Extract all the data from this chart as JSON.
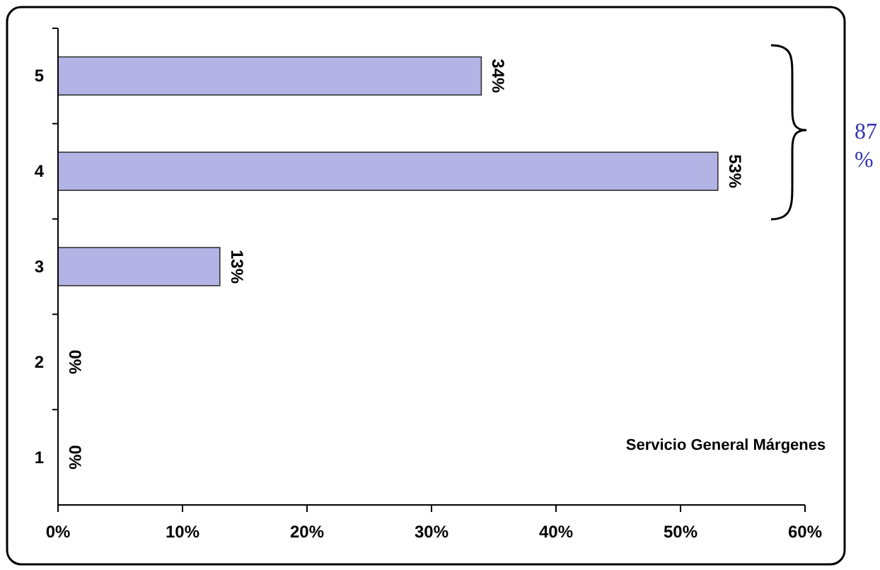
{
  "chart_data": {
    "type": "bar",
    "orientation": "horizontal",
    "categories": [
      "5",
      "4",
      "3",
      "2",
      "1"
    ],
    "values": [
      34,
      53,
      13,
      0,
      0
    ],
    "value_labels": [
      "34%",
      "53%",
      "13%",
      "0%",
      "0%"
    ],
    "color": "#b3b3e6",
    "xlim": [
      0,
      60
    ],
    "xticks": [
      {
        "value": 0,
        "label": "0%"
      },
      {
        "value": 10,
        "label": "10%"
      },
      {
        "value": 20,
        "label": "20%"
      },
      {
        "value": 30,
        "label": "30%"
      },
      {
        "value": 40,
        "label": "40%"
      },
      {
        "value": 50,
        "label": "50%"
      },
      {
        "value": 60,
        "label": "60%"
      }
    ],
    "grid": false,
    "annotations": [
      "Servicio General Márgenes",
      "87 %"
    ]
  }
}
